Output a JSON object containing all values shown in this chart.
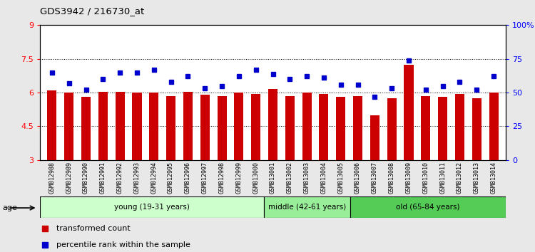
{
  "title": "GDS3942 / 216730_at",
  "samples": [
    "GSM812988",
    "GSM812989",
    "GSM812990",
    "GSM812991",
    "GSM812992",
    "GSM812993",
    "GSM812994",
    "GSM812995",
    "GSM812996",
    "GSM812997",
    "GSM812998",
    "GSM812999",
    "GSM813000",
    "GSM813001",
    "GSM813002",
    "GSM813003",
    "GSM813004",
    "GSM813005",
    "GSM813006",
    "GSM813007",
    "GSM813008",
    "GSM813009",
    "GSM813010",
    "GSM813011",
    "GSM813012",
    "GSM813013",
    "GSM813014"
  ],
  "bar_values": [
    6.1,
    6.0,
    5.8,
    6.05,
    6.05,
    6.0,
    6.0,
    5.85,
    6.05,
    5.9,
    5.85,
    6.0,
    5.95,
    6.15,
    5.85,
    6.0,
    5.95,
    5.8,
    5.85,
    5.0,
    5.75,
    7.25,
    5.85,
    5.8,
    5.95,
    5.75,
    6.0
  ],
  "percentile_values": [
    65,
    57,
    52,
    60,
    65,
    65,
    67,
    58,
    62,
    53,
    55,
    62,
    67,
    64,
    60,
    62,
    61,
    56,
    56,
    47,
    53,
    74,
    52,
    55,
    58,
    52,
    62
  ],
  "bar_color": "#cc0000",
  "dot_color": "#0000cc",
  "ylim_left": [
    3,
    9
  ],
  "ylim_right": [
    0,
    100
  ],
  "yticks_left": [
    3,
    4.5,
    6,
    7.5,
    9
  ],
  "ytick_labels_left": [
    "3",
    "4.5",
    "6",
    "7.5",
    "9"
  ],
  "yticks_right": [
    0,
    25,
    50,
    75,
    100
  ],
  "ytick_labels_right": [
    "0",
    "25",
    "50",
    "75",
    "100%"
  ],
  "grid_values": [
    4.5,
    6.0,
    7.5
  ],
  "groups": [
    {
      "label": "young (19-31 years)",
      "start": 0,
      "end": 13,
      "color": "#ccffcc"
    },
    {
      "label": "middle (42-61 years)",
      "start": 13,
      "end": 18,
      "color": "#99ee99"
    },
    {
      "label": "old (65-84 years)",
      "start": 18,
      "end": 27,
      "color": "#55cc55"
    }
  ],
  "legend_bar_label": "transformed count",
  "legend_dot_label": "percentile rank within the sample",
  "age_label": "age",
  "background_color": "#e8e8e8",
  "plot_bg_color": "#ffffff"
}
